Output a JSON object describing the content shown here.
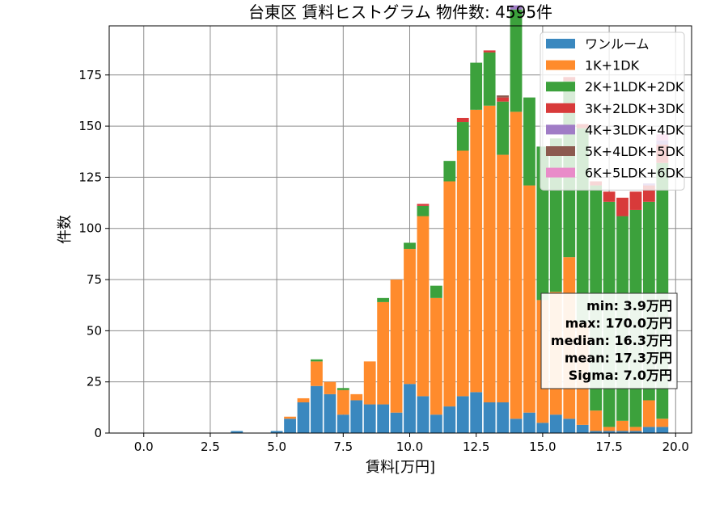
{
  "chart_data": {
    "type": "bar",
    "stacked": true,
    "title": "台東区 賃料ヒストグラム 物件数: 4595件",
    "xlabel": "賃料[万円]",
    "ylabel": "件数",
    "xlim": [
      -1.3,
      20.6
    ],
    "ylim": [
      0,
      199
    ],
    "xticks": [
      0.0,
      2.5,
      5.0,
      7.5,
      10.0,
      12.5,
      15.0,
      17.5,
      20.0
    ],
    "xtick_labels": [
      "0.0",
      "2.5",
      "5.0",
      "7.5",
      "10.0",
      "12.5",
      "15.0",
      "17.5",
      "20.0"
    ],
    "yticks": [
      0,
      25,
      50,
      75,
      100,
      125,
      150,
      175
    ],
    "ytick_labels": [
      "0",
      "25",
      "50",
      "75",
      "100",
      "125",
      "150",
      "175"
    ],
    "grid": true,
    "legend_position": "top-right",
    "bin_width": 0.5,
    "bin_centers": [
      3.5,
      5.0,
      5.5,
      6.0,
      6.5,
      7.0,
      7.5,
      8.0,
      8.5,
      9.0,
      9.5,
      10.0,
      10.5,
      11.0,
      11.5,
      12.0,
      12.5,
      13.0,
      13.5,
      14.0,
      14.5,
      15.0,
      15.5,
      16.0,
      16.5,
      17.0,
      17.5,
      18.0,
      18.5,
      19.0,
      19.5
    ],
    "series": [
      {
        "name": "ワンルーム",
        "color": "#3a88bf",
        "values": [
          1,
          1,
          7,
          15,
          23,
          19,
          9,
          16,
          14,
          14,
          10,
          24,
          18,
          9,
          13,
          18,
          20,
          15,
          15,
          7,
          10,
          5,
          9,
          7,
          4,
          1,
          1,
          1,
          1,
          3,
          3
        ]
      },
      {
        "name": "1K+1DK",
        "color": "#ff8b2c",
        "values": [
          0,
          0,
          1,
          2,
          12,
          6,
          12,
          3,
          21,
          50,
          65,
          66,
          88,
          57,
          110,
          120,
          138,
          145,
          121,
          150,
          111,
          60,
          60,
          79,
          50,
          10,
          2,
          5,
          2,
          13,
          4
        ]
      },
      {
        "name": "2K+1LDK+2DK",
        "color": "#3ca13c",
        "values": [
          0,
          0,
          0,
          0,
          1,
          0,
          1,
          0,
          0,
          2,
          0,
          3,
          5,
          6,
          10,
          14,
          23,
          26,
          26,
          50,
          43,
          75,
          75,
          86,
          95,
          110,
          110,
          100,
          106,
          97,
          125
        ]
      },
      {
        "name": "3K+2LDK+3DK",
        "color": "#d83a3a",
        "values": [
          0,
          0,
          0,
          0,
          0,
          0,
          0,
          0,
          0,
          0,
          0,
          0,
          1,
          0,
          0,
          2,
          0,
          1,
          2,
          0,
          0,
          0,
          0,
          2,
          2,
          2,
          5,
          9,
          9,
          8,
          9
        ]
      },
      {
        "name": "4K+3LDK+4DK",
        "color": "#a07cc6",
        "values": [
          0,
          0,
          0,
          0,
          0,
          0,
          0,
          0,
          0,
          0,
          0,
          0,
          0,
          0,
          0,
          0,
          0,
          0,
          0,
          2,
          0,
          0,
          0,
          0,
          0,
          0,
          0,
          0,
          0,
          1,
          2
        ]
      },
      {
        "name": "5K+4LDK+5DK",
        "color": "#8c5a4f",
        "values": [
          0,
          0,
          0,
          0,
          0,
          0,
          0,
          0,
          0,
          0,
          0,
          0,
          0,
          0,
          0,
          0,
          0,
          0,
          1,
          0,
          0,
          0,
          0,
          0,
          0,
          0,
          0,
          0,
          0,
          0,
          0
        ]
      },
      {
        "name": "6K+5LDK+6DK",
        "color": "#e98bc9",
        "values": [
          0,
          0,
          0,
          0,
          0,
          0,
          0,
          0,
          0,
          0,
          0,
          0,
          0,
          0,
          0,
          0,
          0,
          0,
          0,
          0,
          0,
          0,
          0,
          0,
          0,
          0,
          0,
          0,
          0,
          0,
          3
        ]
      }
    ],
    "stats_lines": [
      "min: 3.9万円",
      "max: 170.0万円",
      "median: 16.3万円",
      "mean: 17.3万円",
      "Sigma: 7.0万円"
    ]
  }
}
